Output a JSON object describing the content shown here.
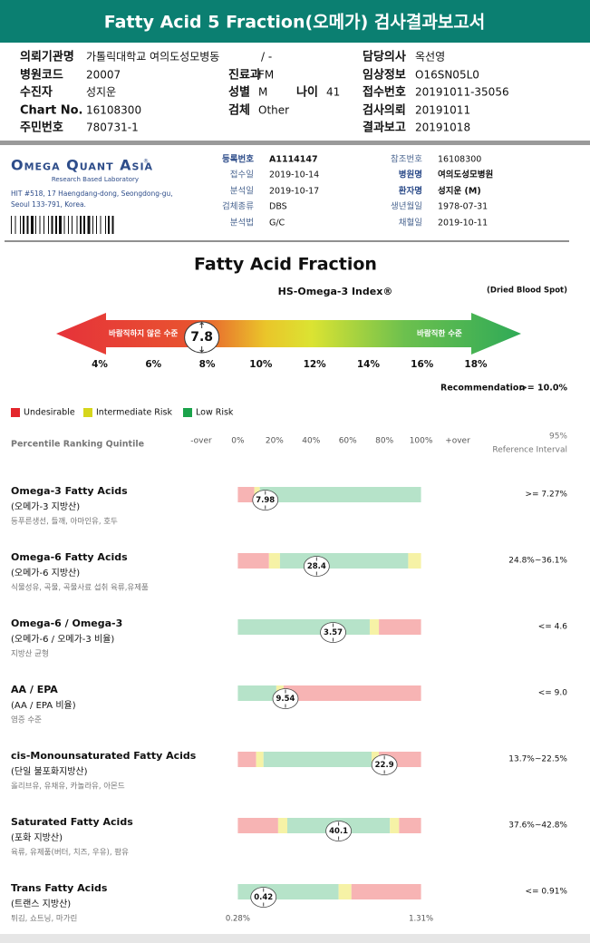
{
  "header": {
    "title": "Fatty Acid 5 Fraction(오메가) 검사결과보고서"
  },
  "info": {
    "fields": [
      {
        "label": "의뢰기관명",
        "value": "가톨릭대학교 여의도성모병동"
      },
      {
        "label": "담당의사",
        "value": "옥선영"
      },
      {
        "label": "병원코드",
        "value": "20007"
      },
      {
        "label": "진료과",
        "value": "FM"
      },
      {
        "label": "임상정보",
        "value": "O16SN05L0"
      },
      {
        "label": "수진자",
        "value": "성지운"
      },
      {
        "label": "성별",
        "value": "M"
      },
      {
        "label": "나이",
        "value": "41"
      },
      {
        "label": "접수번호",
        "value": "20191011-35056"
      },
      {
        "label": "Chart No.",
        "value": "16108300"
      },
      {
        "label": "검체",
        "value": "Other"
      },
      {
        "label": "검사의뢰",
        "value": "20191011"
      },
      {
        "label": "주민번호",
        "value": "780731-1"
      },
      {
        "label": "결과보고",
        "value": "20191018"
      }
    ],
    "ward": "/ -"
  },
  "lab": {
    "name": "Omega Quant Asia",
    "mark": "®",
    "tagline": "Research Based Laboratory",
    "address": [
      "HIT #518, 17 Haengdang-dong, Seongdong-gu,",
      "Seoul 133-791, Korea."
    ]
  },
  "sample": {
    "fields": [
      {
        "label": "등록번호",
        "value": "A1114147"
      },
      {
        "label": "접수일",
        "value": "2019-10-14"
      },
      {
        "label": "분석일",
        "value": "2019-10-17"
      },
      {
        "label": "검체종류",
        "value": "DBS"
      },
      {
        "label": "분석법",
        "value": "G/C"
      },
      {
        "label": "참조번호",
        "value": "16108300"
      },
      {
        "label": "병원명",
        "value": "여의도성모병원"
      },
      {
        "label": "환자명",
        "value": "성지운 (M)"
      },
      {
        "label": "생년월일",
        "value": "1978-07-31"
      },
      {
        "label": "채혈일",
        "value": "2019-10-11"
      }
    ]
  },
  "index_chart": {
    "title": "Fatty Acid Fraction",
    "subtitle": "HS-Omega-3 Index®",
    "note": "(Dried Blood Spot)",
    "low_label": "바람직하지 않은 수준",
    "high_label": "바람직한 수준",
    "value": 7.8,
    "xlim": [
      4,
      18
    ],
    "xticks": [
      {
        "value": 4,
        "label": "4%"
      },
      {
        "value": 6,
        "label": "6%"
      },
      {
        "value": 8,
        "label": "8%"
      },
      {
        "value": 10,
        "label": "10%"
      },
      {
        "value": 12,
        "label": "12%"
      },
      {
        "value": 14,
        "label": "14%"
      },
      {
        "value": 16,
        "label": "16%"
      },
      {
        "value": 18,
        "label": "18%"
      }
    ],
    "recommendation_label": "Recommendation",
    "recommendation": ">= 10.0%"
  },
  "legend": [
    {
      "name": "Undesirable",
      "color": "#e3262c"
    },
    {
      "name": "Intermediate Risk",
      "color": "#d6d61c"
    },
    {
      "name": "Low Risk",
      "color": "#1ba34b"
    }
  ],
  "percentile_chart": {
    "title": "Percentile Ranking Quintile",
    "xlim": [
      -20,
      120
    ],
    "xticks": [
      {
        "value": -20,
        "label": "-over"
      },
      {
        "value": 0,
        "label": "0%"
      },
      {
        "value": 20,
        "label": "20%"
      },
      {
        "value": 40,
        "label": "40%"
      },
      {
        "value": 60,
        "label": "60%"
      },
      {
        "value": 80,
        "label": "80%"
      },
      {
        "value": 100,
        "label": "100%"
      },
      {
        "value": 120,
        "label": "+over"
      }
    ],
    "reference_header": [
      "95%",
      "Reference Interval"
    ],
    "rows": [
      {
        "name": "Omega-3 Fatty Acids",
        "korean": "(오메가-3 지방산)",
        "description": "등푸른생선, 들깨, 아마인유, 호두",
        "reference": ">= 7.27%",
        "value": 7.98,
        "percentile": 15,
        "segments": [
          {
            "from": 0,
            "to": 9,
            "color": "#f7b4b4"
          },
          {
            "from": 9,
            "to": 12,
            "color": "#f6f2a6"
          },
          {
            "from": 12,
            "to": 100,
            "color": "#b6e3c9"
          }
        ]
      },
      {
        "name": "Omega-6 Fatty Acids",
        "korean": "(오메가-6 지방산)",
        "description": "식물성유, 곡물, 곡물사료 섭취 육류,유제품",
        "reference": "24.8%~36.1%",
        "value": 28.4,
        "percentile": 43,
        "segments": [
          {
            "from": 0,
            "to": 17,
            "color": "#f7b4b4"
          },
          {
            "from": 17,
            "to": 23,
            "color": "#f6f2a6"
          },
          {
            "from": 23,
            "to": 93,
            "color": "#b6e3c9"
          },
          {
            "from": 93,
            "to": 100,
            "color": "#f6f2a6"
          }
        ]
      },
      {
        "name": "Omega-6 / Omega-3",
        "korean": "(오메가-6 / 오메가-3 비율)",
        "description": "지방산 균형",
        "reference": "<= 4.6",
        "value": 3.57,
        "percentile": 52,
        "segments": [
          {
            "from": 0,
            "to": 72,
            "color": "#b6e3c9"
          },
          {
            "from": 72,
            "to": 77,
            "color": "#f6f2a6"
          },
          {
            "from": 77,
            "to": 100,
            "color": "#f7b4b4"
          }
        ]
      },
      {
        "name": "AA / EPA",
        "korean": "(AA / EPA 비율)",
        "description": "염증 수준",
        "reference": "<= 9.0",
        "value": 9.54,
        "percentile": 26,
        "segments": [
          {
            "from": 0,
            "to": 21,
            "color": "#b6e3c9"
          },
          {
            "from": 21,
            "to": 25,
            "color": "#f6f2a6"
          },
          {
            "from": 25,
            "to": 100,
            "color": "#f7b4b4"
          }
        ]
      },
      {
        "name": "cis-Monounsaturated Fatty Acids",
        "korean": "(단일 불포화지방산)",
        "description": "올리브유, 유채유, 카놀라유, 아몬드",
        "reference": "13.7%~22.5%",
        "value": 22.9,
        "percentile": 80,
        "segments": [
          {
            "from": 0,
            "to": 10,
            "color": "#f7b4b4"
          },
          {
            "from": 10,
            "to": 14,
            "color": "#f6f2a6"
          },
          {
            "from": 14,
            "to": 73,
            "color": "#b6e3c9"
          },
          {
            "from": 73,
            "to": 77,
            "color": "#f6f2a6"
          },
          {
            "from": 77,
            "to": 100,
            "color": "#f7b4b4"
          }
        ]
      },
      {
        "name": "Saturated Fatty Acids",
        "korean": "(포화 지방산)",
        "description": "육류, 유제품(버터, 치즈, 우유), 팜유",
        "reference": "37.6%~42.8%",
        "value": 40.1,
        "percentile": 55,
        "segments": [
          {
            "from": 0,
            "to": 22,
            "color": "#f7b4b4"
          },
          {
            "from": 22,
            "to": 27,
            "color": "#f6f2a6"
          },
          {
            "from": 27,
            "to": 83,
            "color": "#b6e3c9"
          },
          {
            "from": 83,
            "to": 88,
            "color": "#f6f2a6"
          },
          {
            "from": 88,
            "to": 100,
            "color": "#f7b4b4"
          }
        ]
      },
      {
        "name": "Trans Fatty Acids",
        "korean": "(트랜스 지방산)",
        "description": "튀김, 쇼트닝, 마가린",
        "reference": "<= 0.91%",
        "value": 0.42,
        "percentile": 14,
        "segments": [
          {
            "from": 0,
            "to": 55,
            "color": "#b6e3c9"
          },
          {
            "from": 55,
            "to": 62,
            "color": "#f6f2a6"
          },
          {
            "from": 62,
            "to": 100,
            "color": "#f7b4b4"
          }
        ],
        "min_label": "0.28%",
        "max_label": "1.31%"
      }
    ]
  }
}
